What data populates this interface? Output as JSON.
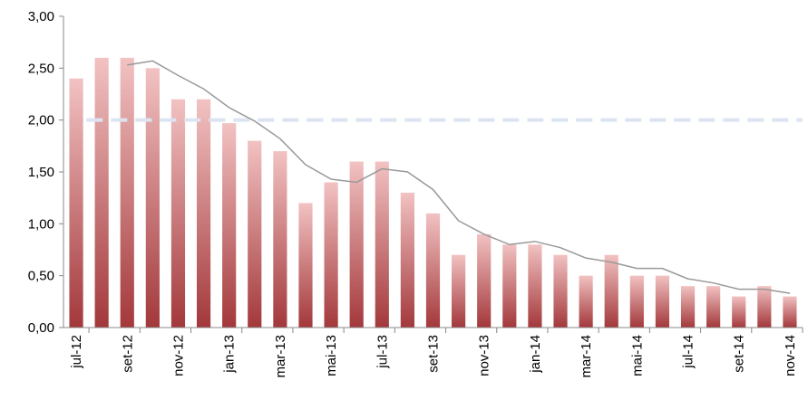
{
  "chart_data": {
    "type": "bar",
    "categories": [
      "jul-12",
      null,
      "set-12",
      null,
      "nov-12",
      null,
      "jan-13",
      null,
      "mar-13",
      null,
      "mai-13",
      null,
      "jul-13",
      null,
      "set-13",
      null,
      "nov-13",
      null,
      "jan-14",
      null,
      "mar-14",
      null,
      "mai-14",
      null,
      "jul-14",
      null,
      "set-14",
      null,
      "nov-14"
    ],
    "series": [
      {
        "type": "bar",
        "color": "#a3383b",
        "values": [
          2.4,
          2.6,
          2.6,
          2.5,
          2.2,
          2.2,
          1.97,
          1.8,
          1.7,
          1.2,
          1.4,
          1.6,
          1.6,
          1.3,
          1.1,
          0.7,
          0.9,
          0.8,
          0.8,
          0.7,
          0.5,
          0.7,
          0.5,
          0.5,
          0.4,
          0.4,
          0.3,
          0.4,
          0.3
        ]
      },
      {
        "type": "line",
        "color": "#999999",
        "values": [
          null,
          null,
          2.53,
          2.57,
          2.43,
          2.3,
          2.12,
          1.99,
          1.82,
          1.57,
          1.43,
          1.4,
          1.53,
          1.5,
          1.33,
          1.03,
          0.9,
          0.8,
          0.83,
          0.77,
          0.67,
          0.63,
          0.57,
          0.57,
          0.47,
          0.43,
          0.37,
          0.37,
          0.33
        ]
      }
    ],
    "reference_line": {
      "value": 2.0,
      "color": "#dce4f2"
    },
    "ylim": [
      0,
      3
    ],
    "yticks": [
      {
        "value": 0,
        "label": "0,00"
      },
      {
        "value": 0.5,
        "label": "0,50"
      },
      {
        "value": 1,
        "label": "1,00"
      },
      {
        "value": 1.5,
        "label": "1,50"
      },
      {
        "value": 2,
        "label": "2,00"
      },
      {
        "value": 2.5,
        "label": "2,50"
      },
      {
        "value": 3,
        "label": "3,00"
      }
    ]
  }
}
